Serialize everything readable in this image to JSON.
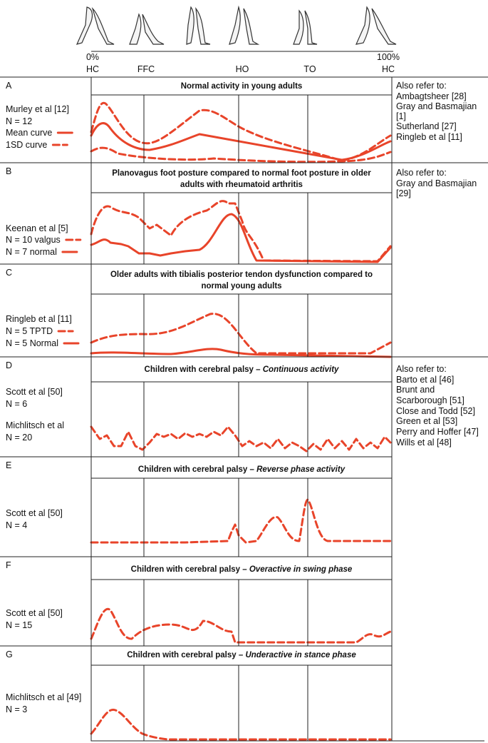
{
  "header": {
    "start_percent": "0%",
    "end_percent": "100%",
    "phases": [
      "HC",
      "FFC",
      "HO",
      "TO",
      "HC"
    ]
  },
  "panels": [
    {
      "letter": "A",
      "title_lines": [
        "Normal activity in young adults"
      ],
      "lines": [
        {
          "text": "Murley et al [12]"
        },
        {
          "text": "N = 12"
        },
        {
          "text": "Mean curve",
          "style": "solid"
        },
        {
          "text": "1SD curve",
          "style": "dashed"
        }
      ],
      "refer": [
        "Also refer to:",
        "Ambagtsheer [28]",
        "Gray and Basmajian",
        "[1]",
        "Sutherland [27]",
        "Ringleb et al [11]"
      ]
    },
    {
      "letter": "B",
      "title_lines": [
        "Planovagus foot posture compared to normal foot posture in older",
        "adults with rheumatoid arthritis"
      ],
      "lines": [
        {
          "text": "Keenan et al [5]"
        },
        {
          "text": "N = 10 valgus",
          "style": "dashed"
        },
        {
          "text": "N = 7 normal",
          "style": "solid"
        }
      ],
      "refer": [
        "Also refer to:",
        "Gray and Basmajian",
        "[29]"
      ]
    },
    {
      "letter": "C",
      "title_lines": [
        "Older adults with tibialis posterior tendon dysfunction compared to",
        "normal young adults"
      ],
      "lines": [
        {
          "text": "Ringleb et al [11]"
        },
        {
          "text": "N = 5 TPTD",
          "style": "dashed"
        },
        {
          "text": "N = 5 Normal",
          "style": "solid"
        }
      ],
      "refer": []
    },
    {
      "letter": "D",
      "title_lines": [
        "Children with cerebral palsy –"
      ],
      "title_italic": "Continuous activity",
      "lines": [
        {
          "text": "Scott et al [50]"
        },
        {
          "text": "N = 6"
        },
        {
          "text": "Michlitsch et al"
        },
        {
          "text": "N = 20"
        }
      ],
      "refer": [
        "Also refer to:",
        "Barto et al [46]",
        "Brunt and",
        "Scarborough [51]",
        "Close and Todd [52]",
        "Green et al [53]",
        "Perry and Hoffer [47]",
        "Wills et al [48]"
      ]
    },
    {
      "letter": "E",
      "title_lines": [
        "Children with cerebral palsy –"
      ],
      "title_italic": "Reverse phase activity",
      "lines": [
        {
          "text": "Scott et al [50]"
        },
        {
          "text": "N = 4"
        }
      ],
      "refer": []
    },
    {
      "letter": "F",
      "title_lines": [
        "Children with cerebral palsy –"
      ],
      "title_italic": "Overactive in swing phase",
      "lines": [
        {
          "text": "Scott et al [50]"
        },
        {
          "text": "N = 15"
        }
      ],
      "refer": []
    },
    {
      "letter": "G",
      "title_lines": [
        "Children with cerebral palsy –"
      ],
      "title_italic": "Underactive in stance phase",
      "lines": [
        {
          "text": "Michlitsch et al [49]"
        },
        {
          "text": "N = 3"
        }
      ],
      "refer": []
    }
  ]
}
